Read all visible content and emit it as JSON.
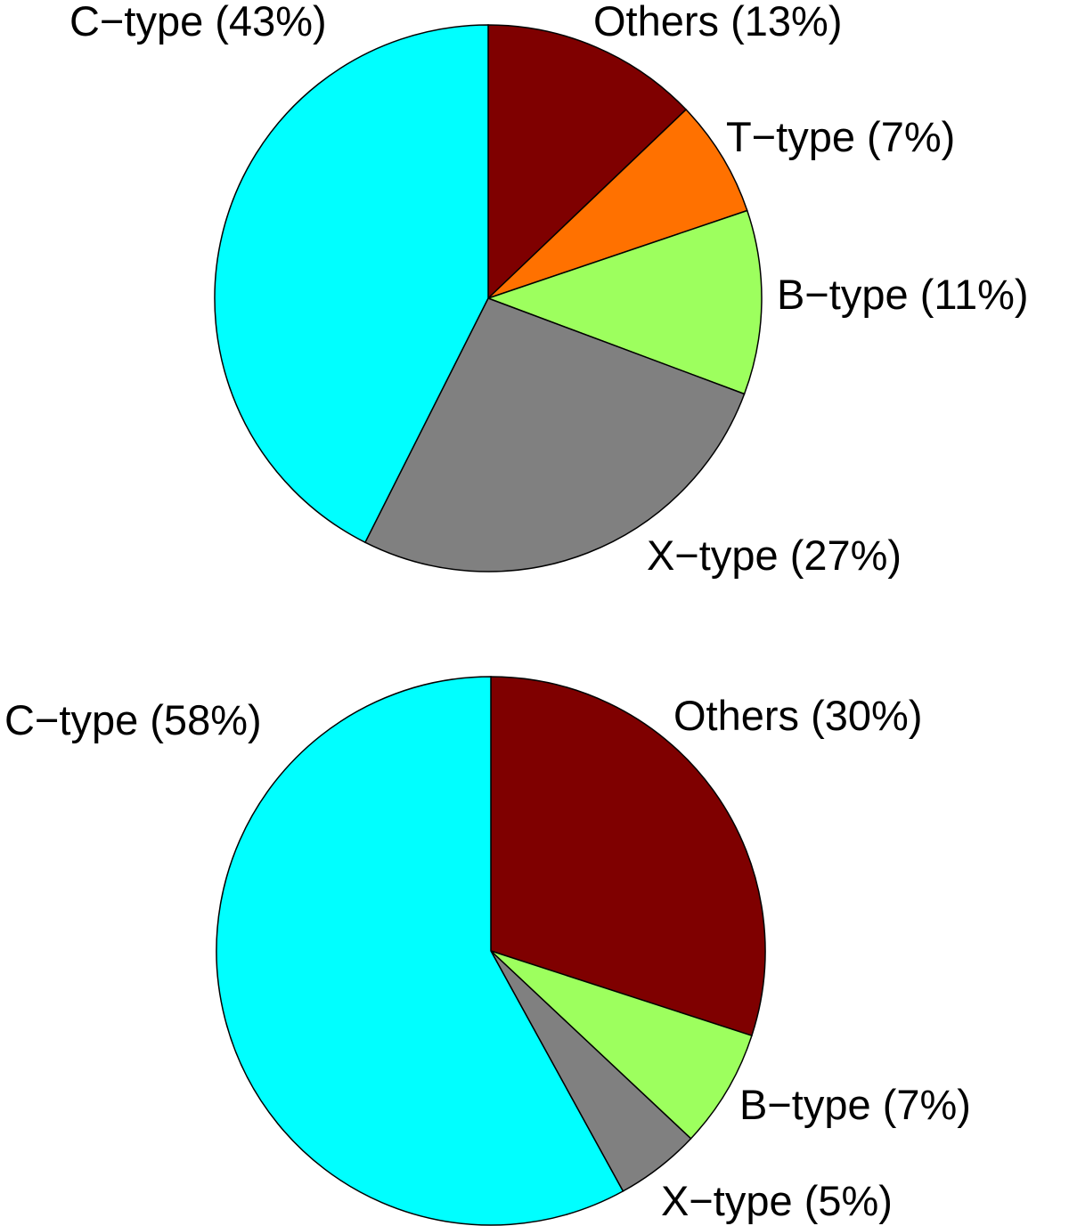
{
  "chart_data": [
    {
      "type": "pie",
      "slices": [
        {
          "label": "Others (13%)",
          "value": 13,
          "color": "#7f0000"
        },
        {
          "label": "T−type (7%)",
          "value": 7,
          "color": "#ff7100"
        },
        {
          "label": "B−type (11%)",
          "value": 11,
          "color": "#9dff5e"
        },
        {
          "label": "X−type (27%)",
          "value": 27,
          "color": "#808080"
        },
        {
          "label": "C−type (43%)",
          "value": 43,
          "color": "#00ffff"
        }
      ]
    },
    {
      "type": "pie",
      "slices": [
        {
          "label": "Others (30%)",
          "value": 30,
          "color": "#7f0000"
        },
        {
          "label": "B−type (7%)",
          "value": 7,
          "color": "#9dff5e"
        },
        {
          "label": "X−type (5%)",
          "value": 5,
          "color": "#808080"
        },
        {
          "label": "C−type (58%)",
          "value": 58,
          "color": "#00ffff"
        }
      ]
    }
  ]
}
